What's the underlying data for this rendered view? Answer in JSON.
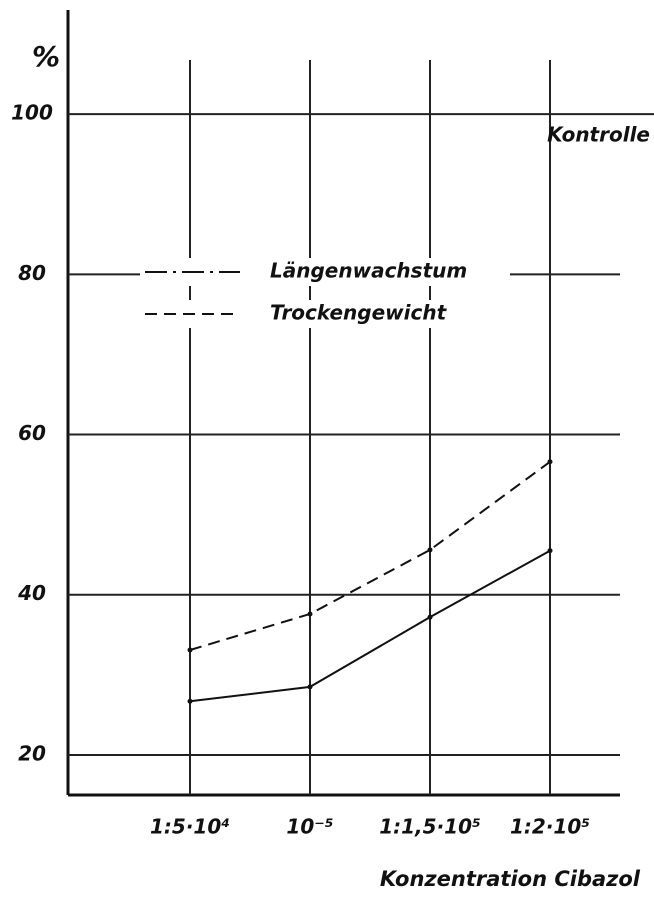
{
  "chart_data": {
    "type": "line",
    "y_label": "%",
    "x_label": "Konzentration  Cibazol",
    "annotation": "Kontrolle",
    "categories": [
      "1:5·10⁴",
      "10⁻⁵",
      "1:1,5·10⁵",
      "1:2·10⁵"
    ],
    "series": [
      {
        "name": "Längenwachstum",
        "color": "#111111",
        "dash": "solid",
        "values": [
          26.7,
          28.5,
          37.2,
          45.5
        ]
      },
      {
        "name": "Trockengewicht",
        "color": "#111111",
        "dash": "dashed",
        "values": [
          33.1,
          37.6,
          45.6,
          56.6
        ]
      }
    ],
    "ylim": [
      15,
      113
    ],
    "yticks": [
      20,
      40,
      60,
      80,
      100
    ],
    "grid": true
  }
}
